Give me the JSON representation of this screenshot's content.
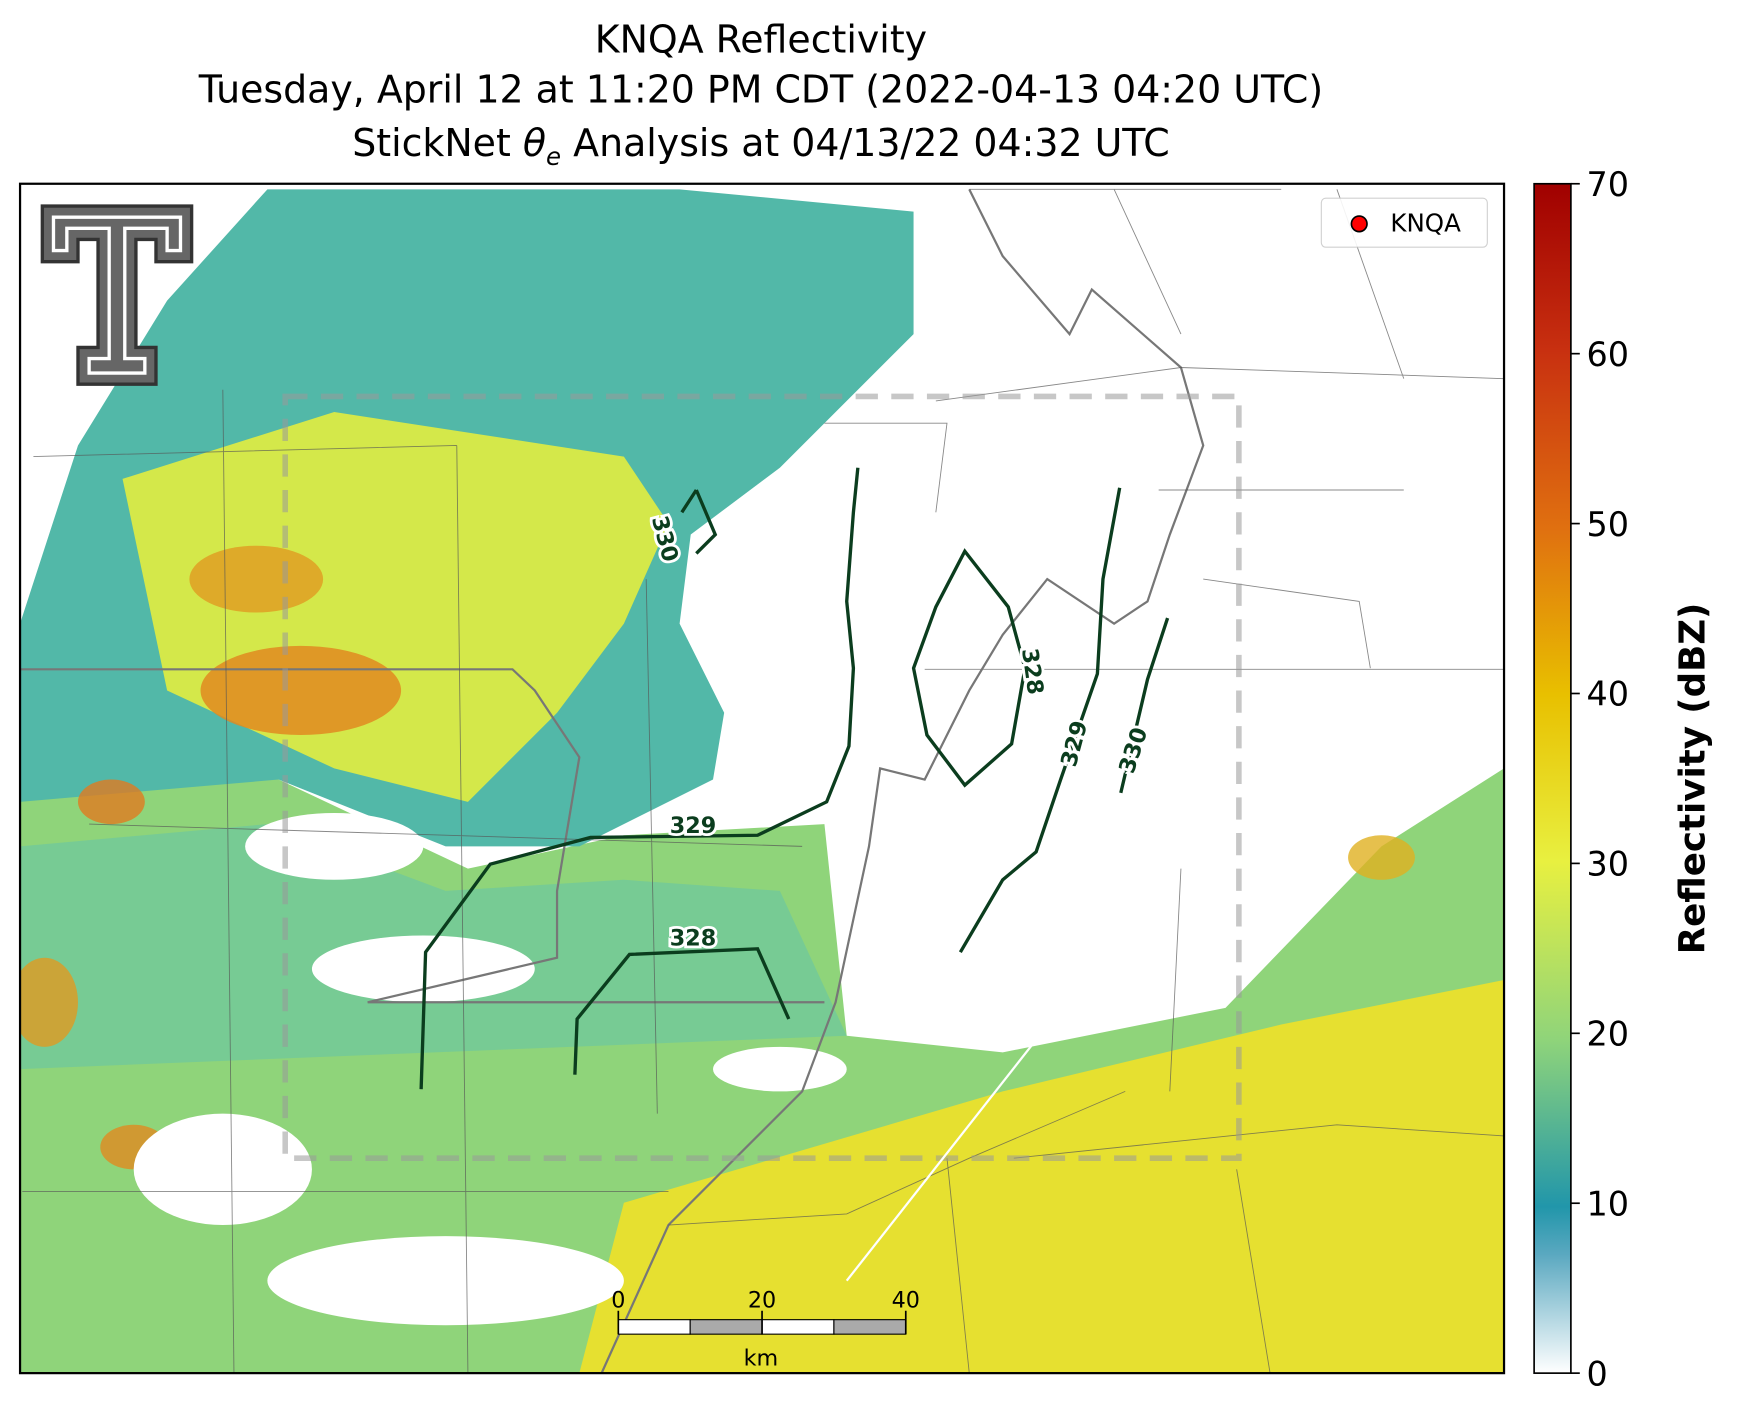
{
  "header": {
    "title": "KNQA Reflectivity",
    "subtitle": "Tuesday, April 12 at 11:20 PM CDT (2022-04-13 04:20 UTC)",
    "analysis": {
      "prefix": "StickNet ",
      "symbol": "θ",
      "subscript": "e",
      "suffix": " Analysis at 04/13/22 04:32 UTC"
    }
  },
  "legend": {
    "label": "KNQA",
    "color": "#ff0000"
  },
  "contours": [
    330,
    329,
    328,
    328,
    329,
    330
  ],
  "colorbar": {
    "label": "Reflectivity (dBZ)",
    "lim": [
      0,
      70
    ],
    "ticks": [
      0,
      10,
      20,
      30,
      40,
      50,
      60,
      70
    ]
  },
  "scale_bar": {
    "lim": [
      0,
      40
    ],
    "ticks": [
      0,
      20,
      40
    ],
    "unit": "km"
  }
}
